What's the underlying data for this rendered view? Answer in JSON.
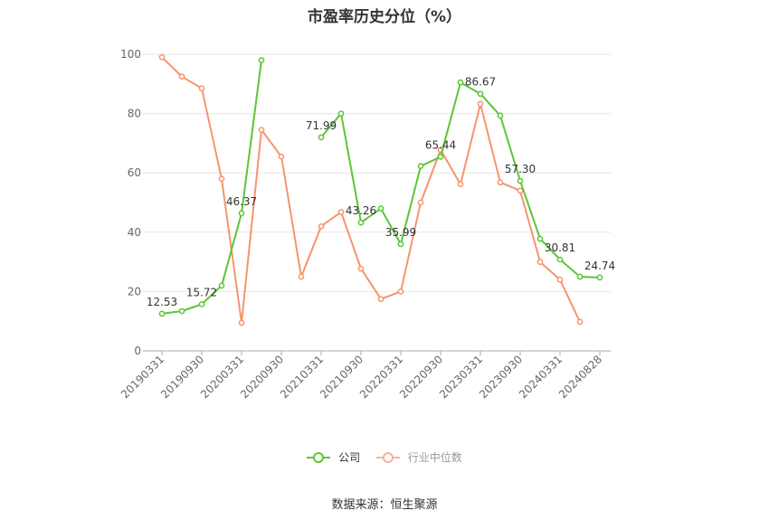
{
  "chart_data": {
    "type": "line",
    "title": "市盈率历史分位（%）",
    "ylim": [
      0,
      100
    ],
    "yticks": [
      0,
      20,
      40,
      60,
      80,
      100
    ],
    "x_tick_labels": [
      "20190331",
      "20190930",
      "20200331",
      "20200930",
      "20210331",
      "20210930",
      "20220331",
      "20220930",
      "20230331",
      "20230930",
      "20240331",
      "20240828"
    ],
    "x_tick_positions": [
      0,
      2,
      4,
      6,
      8,
      10,
      12,
      14,
      16,
      18,
      20,
      22
    ],
    "n_points": 23,
    "grid": true,
    "legend_position": "bottom",
    "series": [
      {
        "name": "公司",
        "color": "#5dc535",
        "values": [
          12.53,
          13.4,
          15.72,
          22.0,
          46.37,
          98.0,
          null,
          null,
          71.99,
          80.0,
          43.26,
          48.0,
          35.99,
          62.3,
          65.44,
          90.5,
          86.67,
          79.3,
          57.3,
          37.8,
          30.81,
          25.0,
          24.74
        ],
        "labeled": [
          {
            "index": 0,
            "text": "12.53"
          },
          {
            "index": 2,
            "text": "15.72"
          },
          {
            "index": 4,
            "text": "46.37"
          },
          {
            "index": 8,
            "text": "71.99"
          },
          {
            "index": 10,
            "text": "43.26"
          },
          {
            "index": 12,
            "text": "35.99"
          },
          {
            "index": 14,
            "text": "65.44"
          },
          {
            "index": 16,
            "text": "86.67"
          },
          {
            "index": 18,
            "text": "57.30"
          },
          {
            "index": 20,
            "text": "30.81"
          },
          {
            "index": 22,
            "text": "24.74"
          }
        ]
      },
      {
        "name": "行业中位数",
        "color": "#f5956c",
        "values": [
          99.0,
          92.5,
          88.5,
          58.0,
          9.5,
          74.5,
          65.5,
          25.0,
          42.0,
          46.8,
          27.7,
          17.5,
          20.0,
          50.0,
          67.8,
          56.2,
          83.3,
          56.8,
          54.0,
          30.0,
          24.0,
          9.8,
          null
        ]
      }
    ]
  },
  "source": "数据来源：恒生聚源"
}
